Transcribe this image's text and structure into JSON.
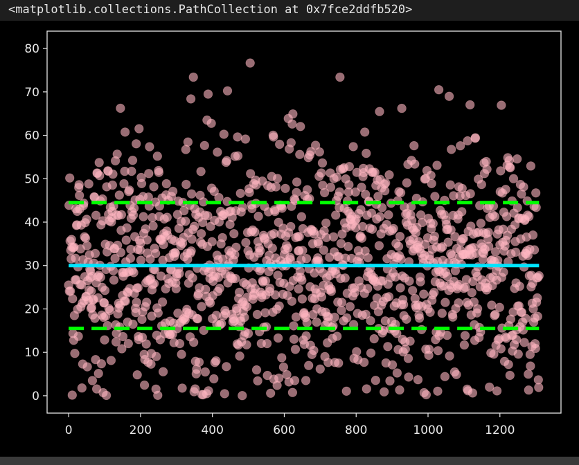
{
  "output_repr": "<matplotlib.collections.PathCollection at 0x7fce2ddfb520>",
  "chart_data": {
    "type": "scatter",
    "background": "#000000",
    "axis_color": "#e8e8e8",
    "point_color": "#ffb6c1",
    "point_alpha": 0.6,
    "xlim": [
      -60,
      1370
    ],
    "ylim": [
      -4,
      84
    ],
    "xticks": [
      0,
      200,
      400,
      600,
      800,
      1000,
      1200
    ],
    "yticks": [
      0,
      10,
      20,
      30,
      40,
      50,
      60,
      70,
      80
    ],
    "n_points": 1310,
    "distribution": {
      "mean": 30,
      "std": 14.5,
      "min": 0,
      "max": 80
    },
    "reference_lines": [
      {
        "name": "mean",
        "y": 30,
        "style": "solid",
        "color": "#00e5ff"
      },
      {
        "name": "upper",
        "y": 44.5,
        "style": "dashed",
        "color": "#00ff00"
      },
      {
        "name": "lower",
        "y": 15.5,
        "style": "dashed",
        "color": "#00ff00"
      }
    ]
  }
}
